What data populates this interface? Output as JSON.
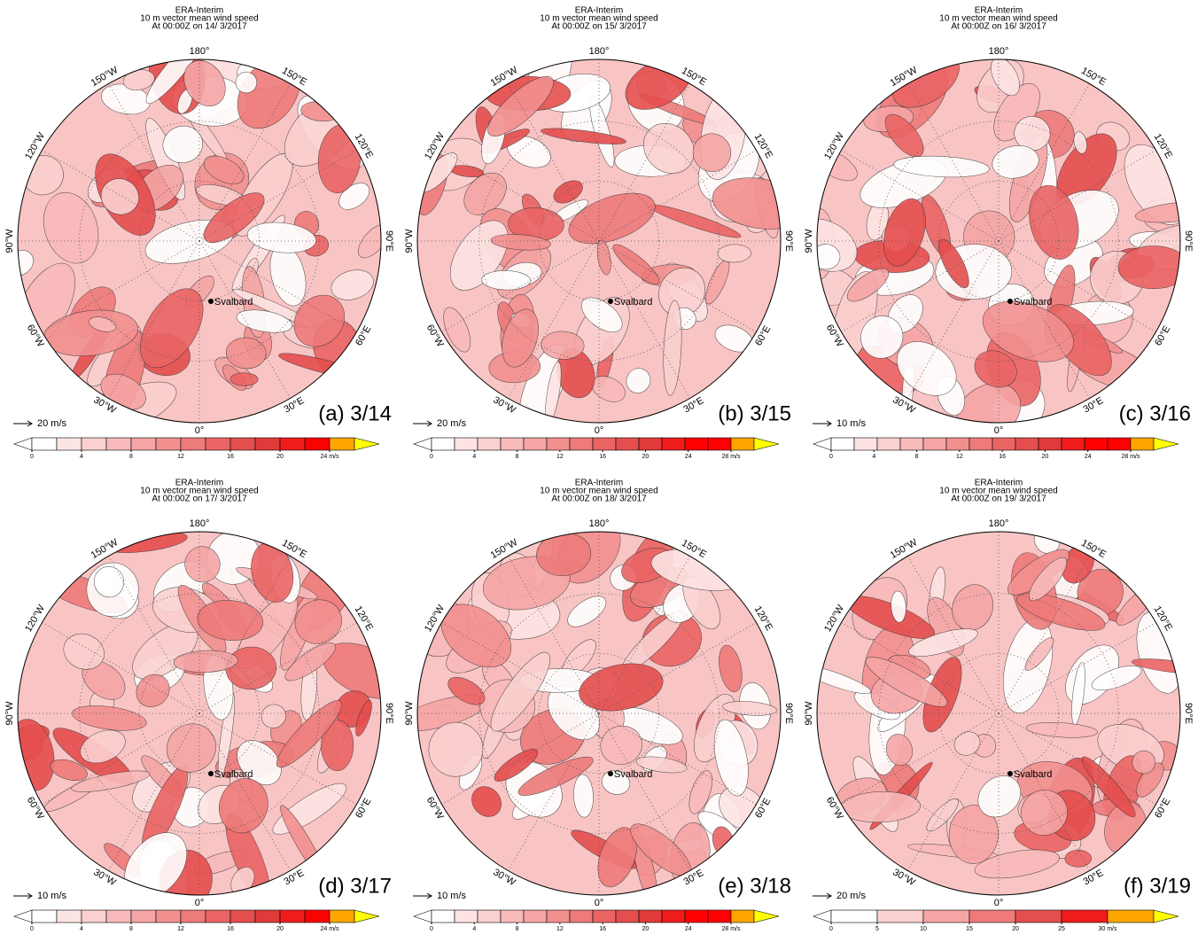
{
  "longitude_labels": [
    "180°",
    "150°E",
    "120°E",
    "90°E",
    "60°E",
    "30°E",
    "0°",
    "30°W",
    "60°W",
    "90°W",
    "120°W",
    "150°W"
  ],
  "place_label": "Svalbard",
  "panels": [
    {
      "title": "ERA-Interim",
      "subtitle": "10 m vector mean wind speed",
      "time": "At 00:00Z on 14/ 3/2017",
      "label": "(a) 3/14",
      "reference_vector": "20 m/s",
      "colorbar": {
        "ticks": [
          0,
          4,
          8,
          12,
          16,
          20,
          {
            "value": 24,
            "label": "24 m/s"
          }
        ],
        "colors": [
          "#ffffff",
          "#fde4e4",
          "#fbd0d0",
          "#f8baba",
          "#f5a5a5",
          "#f29090",
          "#ee7a7a",
          "#ea6464",
          "#e54e4e",
          "#e03a3a",
          "#f01c1c",
          "#ff0000",
          "#ffa500"
        ],
        "extend_color": "#ffff00"
      }
    },
    {
      "title": "ERA-Interim",
      "subtitle": "10 m vector mean wind speed",
      "time": "At 00:00Z on 15/ 3/2017",
      "label": "(b) 3/15",
      "reference_vector": "20 m/s",
      "colorbar": {
        "ticks": [
          0,
          4,
          8,
          12,
          16,
          20,
          24,
          {
            "value": 28,
            "label": "28 m/s"
          }
        ],
        "colors": [
          "#ffffff",
          "#fde4e4",
          "#fbd0d0",
          "#f8baba",
          "#f5a5a5",
          "#f29090",
          "#ee7a7a",
          "#ea6464",
          "#e54e4e",
          "#e03a3a",
          "#f01c1c",
          "#ff0000",
          "#ff0000",
          "#ffa500"
        ],
        "extend_color": "#ffff00"
      }
    },
    {
      "title": "ERA-Interim",
      "subtitle": "10 m vector mean wind speed",
      "time": "At 00:00Z on 16/ 3/2017",
      "label": "(c) 3/16",
      "reference_vector": "10 m/s",
      "colorbar": {
        "ticks": [
          0,
          4,
          8,
          12,
          16,
          20,
          24,
          {
            "value": 28,
            "label": "28 m/s"
          }
        ],
        "colors": [
          "#ffffff",
          "#fde4e4",
          "#fbd0d0",
          "#f8baba",
          "#f5a5a5",
          "#f29090",
          "#ee7a7a",
          "#ea6464",
          "#e54e4e",
          "#e03a3a",
          "#f01c1c",
          "#ff0000",
          "#ff0000",
          "#ffa500"
        ],
        "extend_color": "#ffff00"
      }
    },
    {
      "title": "ERA-Interim",
      "subtitle": "10 m vector mean wind speed",
      "time": "At 00:00Z on 17/ 3/2017",
      "label": "(d) 3/17",
      "reference_vector": "10 m/s",
      "colorbar": {
        "ticks": [
          0,
          4,
          8,
          12,
          16,
          20,
          {
            "value": 24,
            "label": "24 m/s"
          }
        ],
        "colors": [
          "#ffffff",
          "#fde4e4",
          "#fbd0d0",
          "#f8baba",
          "#f5a5a5",
          "#f29090",
          "#ee7a7a",
          "#ea6464",
          "#e54e4e",
          "#e03a3a",
          "#f01c1c",
          "#ff0000",
          "#ffa500"
        ],
        "extend_color": "#ffff00"
      }
    },
    {
      "title": "ERA-Interim",
      "subtitle": "10 m vector mean wind speed",
      "time": "At 00:00Z on 18/ 3/2017",
      "label": "(e) 3/18",
      "reference_vector": "10 m/s",
      "colorbar": {
        "ticks": [
          0,
          4,
          8,
          12,
          16,
          20,
          24,
          {
            "value": 28,
            "label": "28 m/s"
          }
        ],
        "colors": [
          "#ffffff",
          "#fde4e4",
          "#fbd0d0",
          "#f8baba",
          "#f5a5a5",
          "#f29090",
          "#ee7a7a",
          "#ea6464",
          "#e54e4e",
          "#e03a3a",
          "#f01c1c",
          "#ff0000",
          "#ff0000",
          "#ffa500"
        ],
        "extend_color": "#ffff00"
      }
    },
    {
      "title": "ERA-Interim",
      "subtitle": "10 m vector mean wind speed",
      "time": "At 00:00Z on 19/ 3/2017",
      "label": "(f) 3/19",
      "reference_vector": "20 m/s",
      "colorbar": {
        "ticks": [
          0,
          5,
          10,
          15,
          20,
          25,
          {
            "value": 30,
            "label": "30 m/s"
          }
        ],
        "colors": [
          "#ffffff",
          "#fbd0d0",
          "#f5a5a5",
          "#ee7a7a",
          "#e54e4e",
          "#f01c1c",
          "#ffa500"
        ],
        "extend_color": "#ffff00"
      }
    }
  ]
}
